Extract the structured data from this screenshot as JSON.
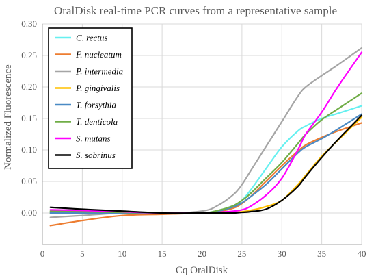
{
  "chart_data": {
    "type": "line",
    "title": "OralDisk real-time PCR curves from a representative sample",
    "xlabel": "Cq OralDisk",
    "ylabel": "Normalized Fluorescence",
    "xlim": [
      0,
      40
    ],
    "ylim": [
      -0.05,
      0.3
    ],
    "x_ticks": [
      "0",
      "5",
      "10",
      "15",
      "20",
      "25",
      "30",
      "35",
      "40"
    ],
    "y_ticks": [
      "0.30",
      "0.25",
      "0.20",
      "0.15",
      "0.10",
      "0.05",
      "0.00"
    ],
    "grid": true,
    "legend_position": "top-left",
    "x": [
      1,
      5,
      10,
      15,
      20,
      22,
      24,
      25,
      26,
      28,
      30,
      32,
      33,
      35,
      37,
      40
    ],
    "series": [
      {
        "name": "C. rectus",
        "color": "#66f0f0",
        "values": [
          0.0,
          0.0,
          0.0,
          0.0,
          0.0,
          0.004,
          0.012,
          0.02,
          0.035,
          0.07,
          0.105,
          0.13,
          0.138,
          0.15,
          0.158,
          0.17
        ]
      },
      {
        "name": "F. nucleatum",
        "color": "#ed7d31",
        "values": [
          -0.02,
          -0.012,
          -0.004,
          -0.002,
          0.0,
          0.002,
          0.008,
          0.015,
          0.025,
          0.05,
          0.075,
          0.098,
          0.108,
          0.12,
          0.13,
          0.143
        ]
      },
      {
        "name": "P. intermedia",
        "color": "#a5a5a5",
        "values": [
          -0.007,
          -0.004,
          0.0,
          -0.001,
          0.003,
          0.012,
          0.03,
          0.045,
          0.065,
          0.105,
          0.145,
          0.185,
          0.2,
          0.218,
          0.235,
          0.262
        ]
      },
      {
        "name": "P. gingivalis",
        "color": "#ffc000",
        "values": [
          0.0,
          0.0,
          0.0,
          0.0,
          0.0,
          0.0,
          0.001,
          0.002,
          0.004,
          0.01,
          0.02,
          0.045,
          0.06,
          0.09,
          0.115,
          0.152
        ]
      },
      {
        "name": "T. forsythia",
        "color": "#4a8ac4",
        "values": [
          0.0,
          0.0,
          0.0,
          0.0,
          0.0,
          0.003,
          0.01,
          0.016,
          0.025,
          0.045,
          0.07,
          0.095,
          0.105,
          0.118,
          0.133,
          0.157
        ]
      },
      {
        "name": "T. denticola",
        "color": "#70ad47",
        "values": [
          0.003,
          0.002,
          0.001,
          0.0,
          0.0,
          0.004,
          0.012,
          0.02,
          0.03,
          0.055,
          0.08,
          0.11,
          0.125,
          0.148,
          0.165,
          0.19
        ]
      },
      {
        "name": "S. mutans",
        "color": "#ff00ff",
        "values": [
          0.005,
          0.004,
          0.002,
          0.0,
          0.0,
          0.001,
          0.003,
          0.005,
          0.01,
          0.028,
          0.055,
          0.1,
          0.125,
          0.16,
          0.2,
          0.255
        ]
      },
      {
        "name": "S. sobrinus",
        "color": "#000000",
        "values": [
          0.009,
          0.006,
          0.003,
          0.0,
          0.0,
          0.0,
          0.0,
          0.001,
          0.002,
          0.006,
          0.02,
          0.042,
          0.058,
          0.088,
          0.116,
          0.155
        ]
      }
    ]
  }
}
